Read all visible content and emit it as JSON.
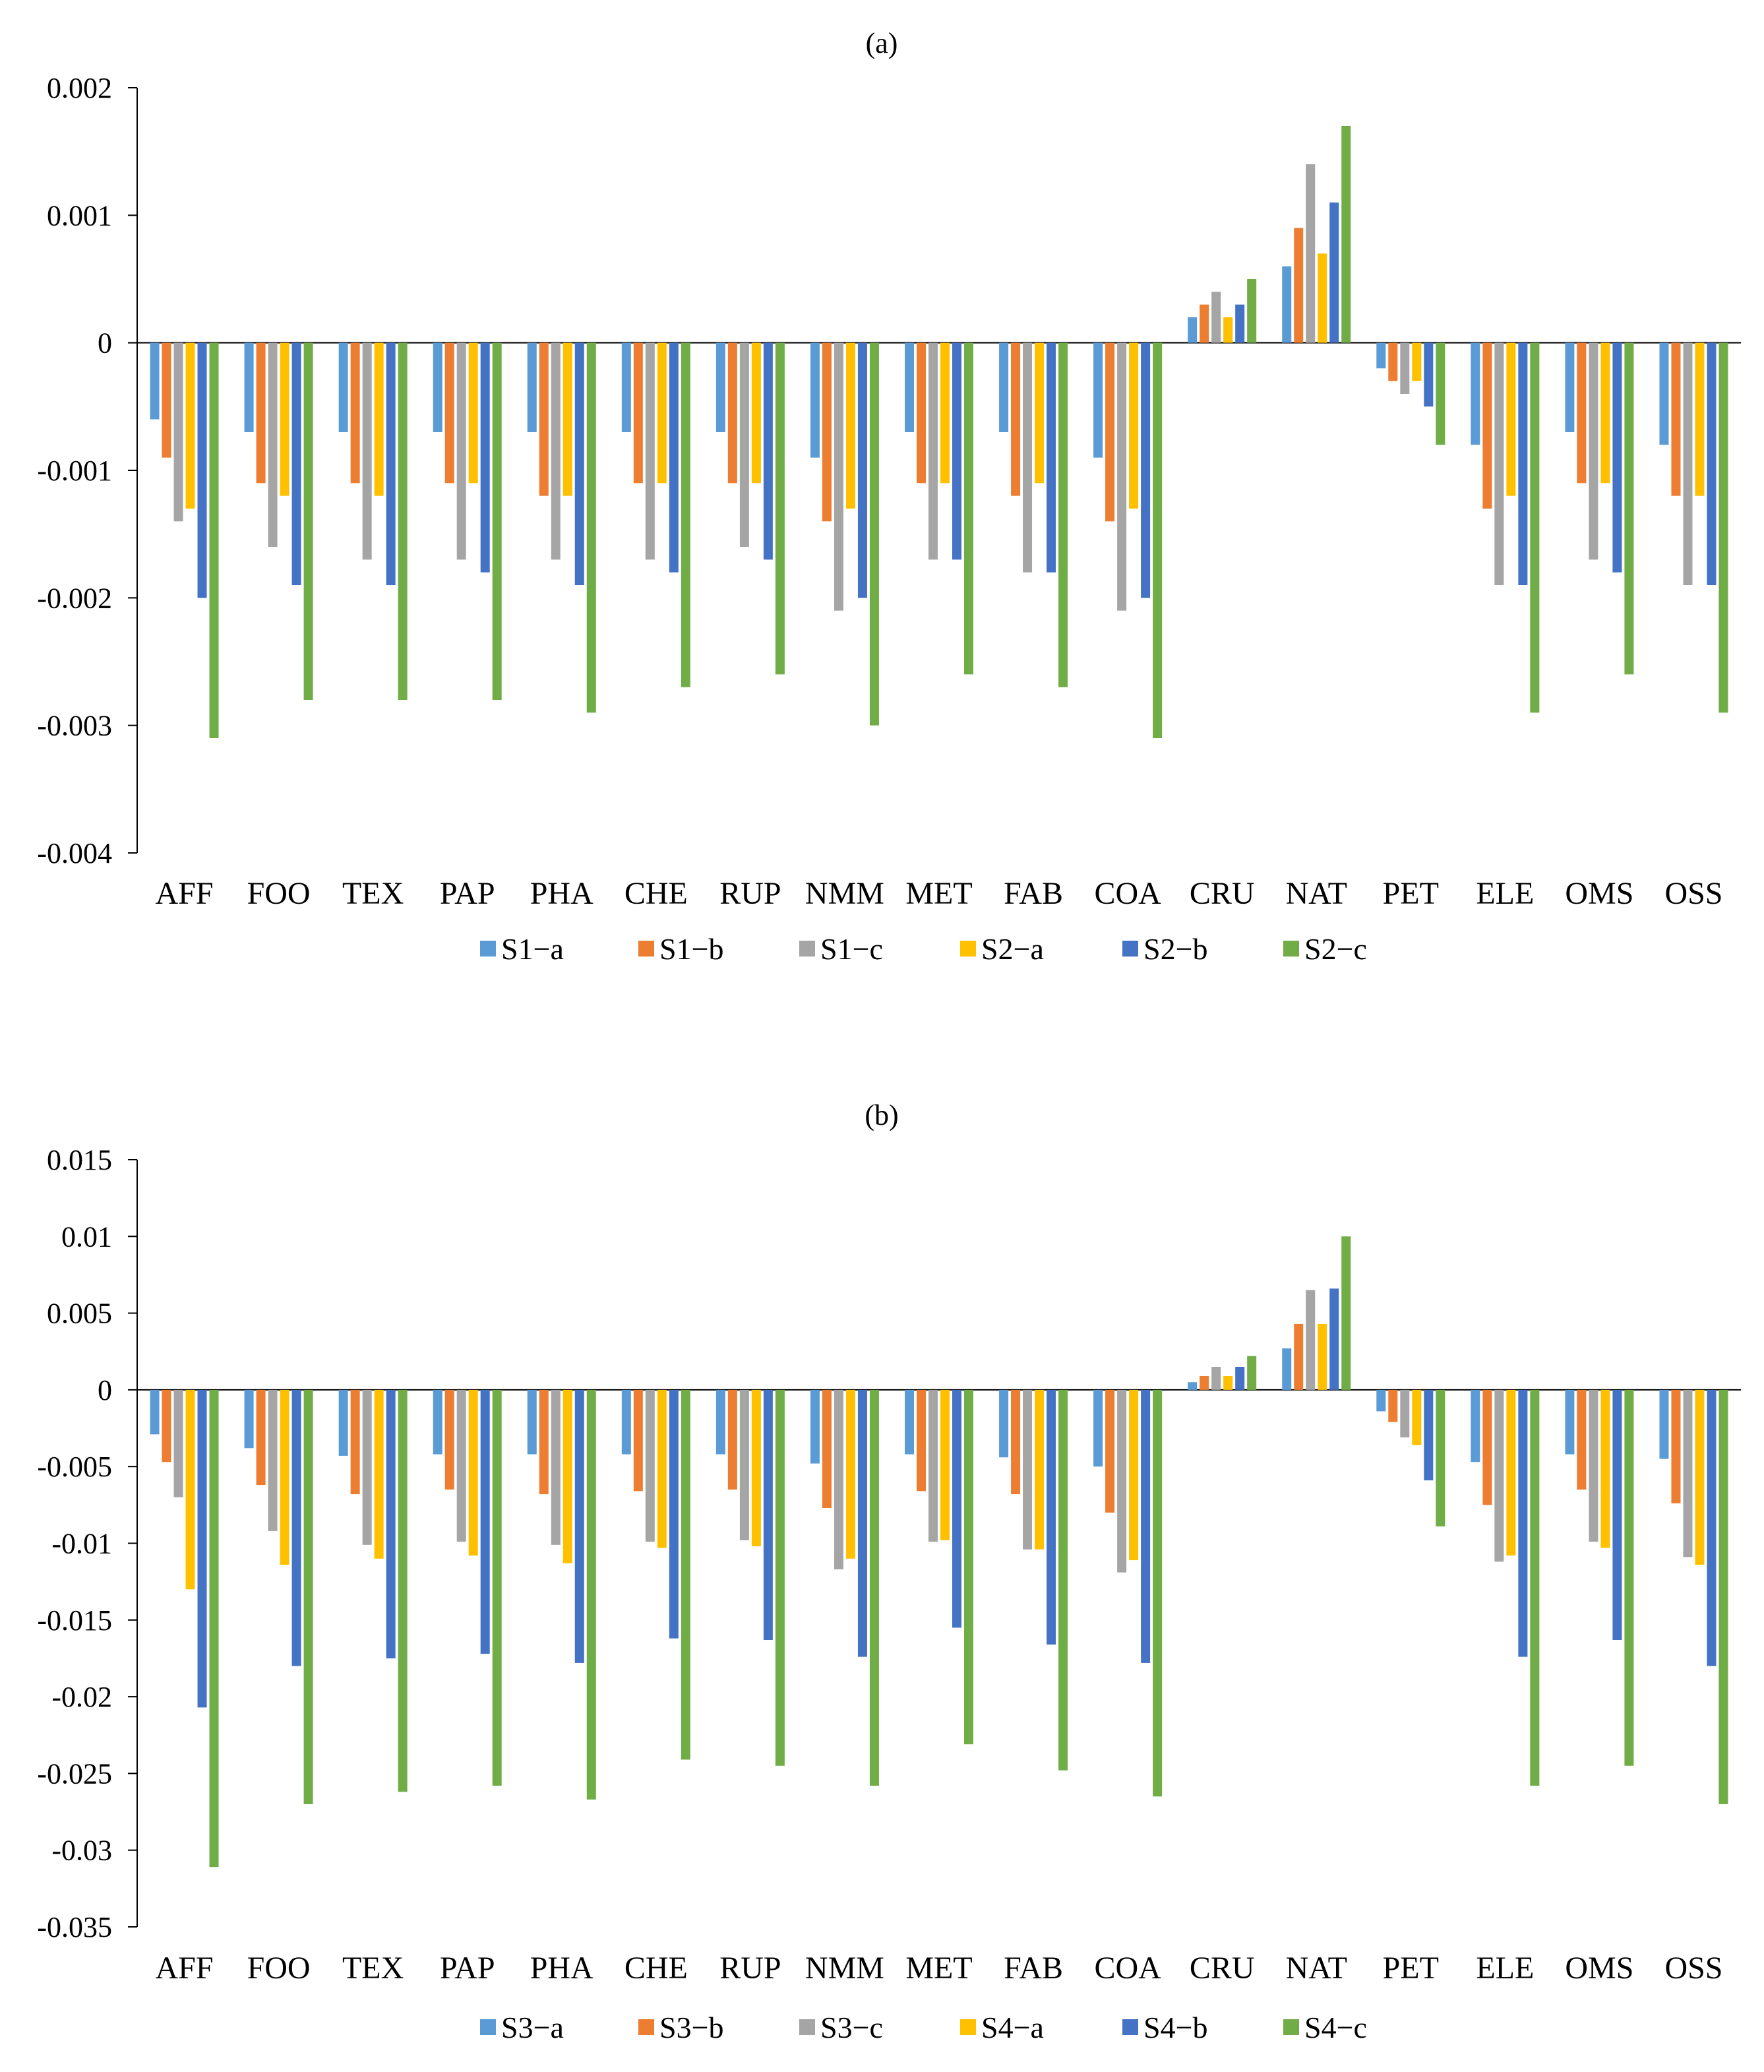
{
  "chart_data": [
    {
      "type": "bar",
      "title": "(a)",
      "xlabel": "",
      "ylabel": "",
      "ylim": [
        -0.004,
        0.002
      ],
      "yticks": [
        0.002,
        0.001,
        0,
        -0.001,
        -0.002,
        -0.003,
        -0.004
      ],
      "ytick_labels": [
        "0.002",
        "0.001",
        "0",
        "-0.001",
        "-0.002",
        "-0.003",
        "-0.004"
      ],
      "grid": false,
      "legend_position": "bottom",
      "categories": [
        "AFF",
        "FOO",
        "TEX",
        "PAP",
        "PHA",
        "CHE",
        "RUP",
        "NMM",
        "MET",
        "FAB",
        "COA",
        "CRU",
        "NAT",
        "PET",
        "ELE",
        "OMS",
        "OSS"
      ],
      "series": [
        {
          "name": "S1−a",
          "color": "#5B9BD5",
          "values": [
            -0.0006,
            -0.0007,
            -0.0007,
            -0.0007,
            -0.0007,
            -0.0007,
            -0.0007,
            -0.0009,
            -0.0007,
            -0.0007,
            -0.0009,
            0.0002,
            0.0006,
            -0.0002,
            -0.0008,
            -0.0007,
            -0.0008
          ]
        },
        {
          "name": "S1−b",
          "color": "#ED7D31",
          "values": [
            -0.0009,
            -0.0011,
            -0.0011,
            -0.0011,
            -0.0012,
            -0.0011,
            -0.0011,
            -0.0014,
            -0.0011,
            -0.0012,
            -0.0014,
            0.0003,
            0.0009,
            -0.0003,
            -0.0013,
            -0.0011,
            -0.0012
          ]
        },
        {
          "name": "S1−c",
          "color": "#A5A5A5",
          "values": [
            -0.0014,
            -0.0016,
            -0.0017,
            -0.0017,
            -0.0017,
            -0.0017,
            -0.0016,
            -0.0021,
            -0.0017,
            -0.0018,
            -0.0021,
            0.0004,
            0.0014,
            -0.0004,
            -0.0019,
            -0.0017,
            -0.0019
          ]
        },
        {
          "name": "S2−a",
          "color": "#FFC000",
          "values": [
            -0.0013,
            -0.0012,
            -0.0012,
            -0.0011,
            -0.0012,
            -0.0011,
            -0.0011,
            -0.0013,
            -0.0011,
            -0.0011,
            -0.0013,
            0.0002,
            0.0007,
            -0.0003,
            -0.0012,
            -0.0011,
            -0.0012
          ]
        },
        {
          "name": "S2−b",
          "color": "#4472C4",
          "values": [
            -0.002,
            -0.0019,
            -0.0019,
            -0.0018,
            -0.0019,
            -0.0018,
            -0.0017,
            -0.002,
            -0.0017,
            -0.0018,
            -0.002,
            0.0003,
            0.0011,
            -0.0005,
            -0.0019,
            -0.0018,
            -0.0019
          ]
        },
        {
          "name": "S2−c",
          "color": "#70AD47",
          "values": [
            -0.0031,
            -0.0028,
            -0.0028,
            -0.0028,
            -0.0029,
            -0.0027,
            -0.0026,
            -0.003,
            -0.0026,
            -0.0027,
            -0.0031,
            0.0005,
            0.0017,
            -0.0008,
            -0.0029,
            -0.0026,
            -0.0029
          ]
        }
      ]
    },
    {
      "type": "bar",
      "title": "(b)",
      "xlabel": "",
      "ylabel": "",
      "ylim": [
        -0.035,
        0.015
      ],
      "yticks": [
        0.015,
        0.01,
        0.005,
        0,
        -0.005,
        -0.01,
        -0.015,
        -0.02,
        -0.025,
        -0.03,
        -0.035
      ],
      "ytick_labels": [
        "0.015",
        "0.01",
        "0.005",
        "0",
        "-0.005",
        "-0.01",
        "-0.015",
        "-0.02",
        "-0.025",
        "-0.03",
        "-0.035"
      ],
      "grid": false,
      "legend_position": "bottom",
      "categories": [
        "AFF",
        "FOO",
        "TEX",
        "PAP",
        "PHA",
        "CHE",
        "RUP",
        "NMM",
        "MET",
        "FAB",
        "COA",
        "CRU",
        "NAT",
        "PET",
        "ELE",
        "OMS",
        "OSS"
      ],
      "series": [
        {
          "name": "S3−a",
          "color": "#5B9BD5",
          "values": [
            -0.0029,
            -0.0038,
            -0.0043,
            -0.0042,
            -0.0042,
            -0.0042,
            -0.0042,
            -0.0048,
            -0.0042,
            -0.0044,
            -0.005,
            0.0005,
            0.0027,
            -0.0014,
            -0.0047,
            -0.0042,
            -0.0045
          ]
        },
        {
          "name": "S3−b",
          "color": "#ED7D31",
          "values": [
            -0.0047,
            -0.0062,
            -0.0068,
            -0.0065,
            -0.0068,
            -0.0066,
            -0.0065,
            -0.0077,
            -0.0066,
            -0.0068,
            -0.008,
            0.0009,
            0.0043,
            -0.0021,
            -0.0075,
            -0.0065,
            -0.0074
          ]
        },
        {
          "name": "S3−c",
          "color": "#A5A5A5",
          "values": [
            -0.007,
            -0.0092,
            -0.0101,
            -0.0099,
            -0.0101,
            -0.0099,
            -0.0098,
            -0.0117,
            -0.0099,
            -0.0104,
            -0.0119,
            0.0015,
            0.0065,
            -0.0031,
            -0.0112,
            -0.0099,
            -0.0109
          ]
        },
        {
          "name": "S4−a",
          "color": "#FFC000",
          "values": [
            -0.013,
            -0.0114,
            -0.011,
            -0.0108,
            -0.0113,
            -0.0103,
            -0.0102,
            -0.011,
            -0.0098,
            -0.0104,
            -0.0111,
            0.0009,
            0.0043,
            -0.0036,
            -0.0108,
            -0.0103,
            -0.0114
          ]
        },
        {
          "name": "S4−b",
          "color": "#4472C4",
          "values": [
            -0.0207,
            -0.018,
            -0.0175,
            -0.0172,
            -0.0178,
            -0.0162,
            -0.0163,
            -0.0174,
            -0.0155,
            -0.0166,
            -0.0178,
            0.0015,
            0.0066,
            -0.0059,
            -0.0174,
            -0.0163,
            -0.018
          ]
        },
        {
          "name": "S4−c",
          "color": "#70AD47",
          "values": [
            -0.0311,
            -0.027,
            -0.0262,
            -0.0258,
            -0.0267,
            -0.0241,
            -0.0245,
            -0.0258,
            -0.0231,
            -0.0248,
            -0.0265,
            0.0022,
            0.01,
            -0.0089,
            -0.0258,
            -0.0245,
            -0.027
          ]
        }
      ]
    }
  ]
}
